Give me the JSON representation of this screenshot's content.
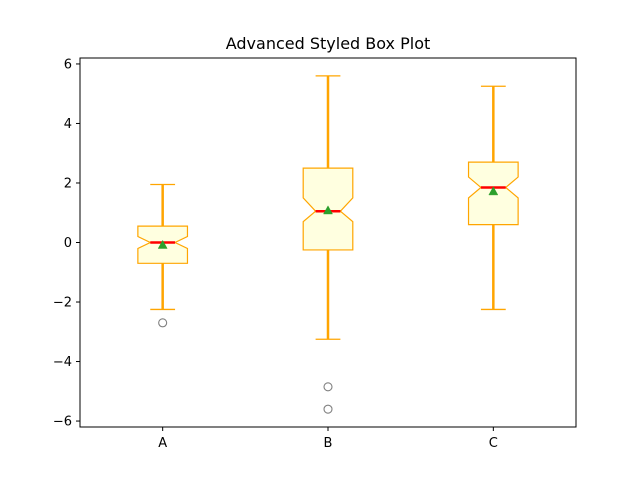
{
  "chart_data": {
    "type": "box",
    "title": "Advanced Styled Box Plot",
    "xlabel": "",
    "ylabel": "",
    "categories": [
      "A",
      "B",
      "C"
    ],
    "ylim": [
      -6.2,
      6.2
    ],
    "yticks": [
      -6,
      -4,
      -2,
      0,
      2,
      4,
      6
    ],
    "notched": true,
    "show_means": true,
    "boxes": [
      {
        "label": "A",
        "whisker_low": -2.25,
        "q1": -0.7,
        "median": 0.0,
        "q3": 0.55,
        "whisker_high": 1.95,
        "notch_low": -0.2,
        "notch_high": 0.2,
        "mean": -0.08,
        "outliers": [
          -2.7
        ]
      },
      {
        "label": "B",
        "whisker_low": -3.25,
        "q1": -0.25,
        "median": 1.05,
        "q3": 2.5,
        "whisker_high": 5.6,
        "notch_low": 0.7,
        "notch_high": 1.5,
        "mean": 1.08,
        "outliers": [
          -4.85,
          -5.6
        ]
      },
      {
        "label": "C",
        "whisker_low": -2.25,
        "q1": 0.6,
        "median": 1.85,
        "q3": 2.7,
        "whisker_high": 5.25,
        "notch_low": 1.5,
        "notch_high": 2.2,
        "mean": 1.72,
        "outliers": []
      }
    ],
    "colors": {
      "box_fill": "#ffffe0",
      "box_edge": "#ffa500",
      "whisker": "#ffa500",
      "median": "#ff0000",
      "mean_marker": "#2ca02c",
      "outlier_edge": "#808080"
    },
    "grid": false,
    "legend": "none"
  }
}
